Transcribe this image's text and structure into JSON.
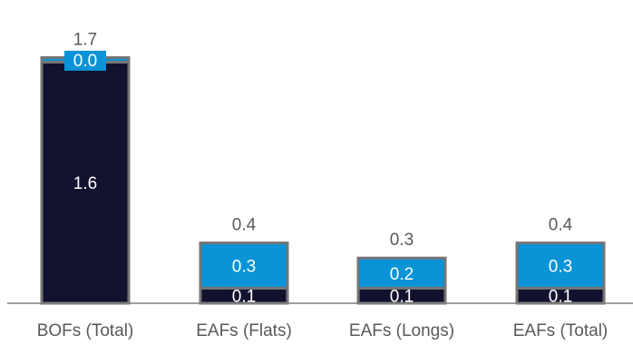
{
  "chart_data": {
    "type": "bar",
    "stacked": true,
    "title": "",
    "xlabel": "",
    "ylabel": "",
    "ylim": [
      0,
      1.85
    ],
    "grid": false,
    "legend": "none",
    "categories": [
      "BOFs (Total)",
      "EAFs (Flats)",
      "EAFs (Longs)",
      "EAFs (Total)"
    ],
    "totals": [
      1.7,
      0.4,
      0.3,
      0.4
    ],
    "total_labels": [
      "1.7",
      "0.4",
      "0.3",
      "0.4"
    ],
    "series": [
      {
        "values": [
          1.6,
          0.1,
          0.1,
          0.1
        ],
        "labels": [
          "1.6",
          "0.1",
          "0.1",
          "0.1"
        ],
        "color": "#12112e"
      },
      {
        "values": [
          0.0,
          0.3,
          0.2,
          0.3
        ],
        "labels": [
          "0.0",
          "0.3",
          "0.2",
          "0.3"
        ],
        "color": "#0a93d6"
      }
    ],
    "border_color": "#757575",
    "axis_color": "#808080",
    "label_color": "#595959",
    "inner_label_color": "#ffffff"
  }
}
